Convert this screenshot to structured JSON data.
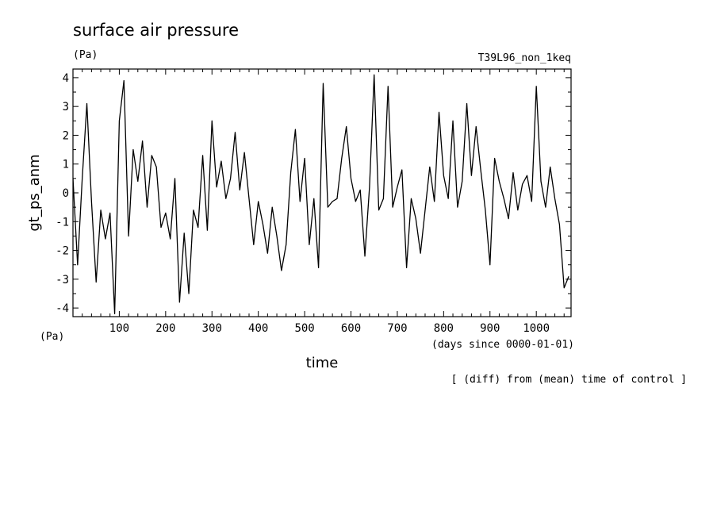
{
  "chart_data": {
    "type": "line",
    "title": "surface air pressure",
    "units_top": "(Pa)",
    "units_bottom": "(Pa)",
    "run_label": "T39L96_non_1keq",
    "ylabel": "gt_ps_anm",
    "xlabel": "time",
    "xunits": "(days since 0000-01-01)",
    "note": "[ (diff) from (mean) time of control ]",
    "xlim": [
      0,
      1075
    ],
    "ylim": [
      4.3,
      -4.3
    ],
    "y_inverted": true,
    "x_ticks": [
      100,
      200,
      300,
      400,
      500,
      600,
      700,
      800,
      900,
      1000
    ],
    "y_ticks": [
      -4,
      -3,
      -2,
      -1,
      0,
      1,
      2,
      3,
      4
    ],
    "series": [
      {
        "name": "gt_ps_anm",
        "x": [
          0,
          10,
          20,
          30,
          40,
          50,
          60,
          70,
          80,
          90,
          100,
          110,
          120,
          130,
          140,
          150,
          160,
          170,
          180,
          190,
          200,
          210,
          220,
          230,
          240,
          250,
          260,
          270,
          280,
          290,
          300,
          310,
          320,
          330,
          340,
          350,
          360,
          370,
          380,
          390,
          400,
          410,
          420,
          430,
          440,
          450,
          460,
          470,
          480,
          490,
          500,
          510,
          520,
          530,
          540,
          550,
          560,
          570,
          580,
          590,
          600,
          610,
          620,
          630,
          640,
          650,
          660,
          670,
          680,
          690,
          700,
          710,
          720,
          730,
          740,
          750,
          760,
          770,
          780,
          790,
          800,
          810,
          820,
          830,
          840,
          850,
          860,
          870,
          880,
          890,
          900,
          910,
          920,
          930,
          940,
          950,
          960,
          970,
          980,
          990,
          1000,
          1010,
          1020,
          1030,
          1040,
          1050,
          1060,
          1070
        ],
        "y": [
          0.5,
          -2.5,
          0.5,
          3.1,
          -0.3,
          -3.1,
          -0.6,
          -1.6,
          -0.7,
          -4.2,
          2.5,
          3.9,
          -1.5,
          1.5,
          0.4,
          1.8,
          -0.5,
          1.3,
          0.9,
          -1.2,
          -0.7,
          -1.6,
          0.5,
          -3.8,
          -1.4,
          -3.5,
          -0.6,
          -1.2,
          1.3,
          -1.3,
          2.5,
          0.2,
          1.1,
          -0.2,
          0.5,
          2.1,
          0.1,
          1.4,
          -0.2,
          -1.8,
          -0.3,
          -1.1,
          -2.1,
          -0.5,
          -1.5,
          -2.7,
          -1.8,
          0.7,
          2.2,
          -0.3,
          1.2,
          -1.8,
          -0.2,
          -2.6,
          3.8,
          -0.5,
          -0.3,
          -0.2,
          1.2,
          2.3,
          0.5,
          -0.3,
          0.1,
          -2.2,
          0.2,
          4.1,
          -0.6,
          -0.2,
          3.7,
          -0.5,
          0.2,
          0.8,
          -2.6,
          -0.2,
          -0.9,
          -2.1,
          -0.6,
          0.9,
          -0.3,
          2.8,
          0.6,
          -0.2,
          2.5,
          -0.5,
          0.4,
          3.1,
          0.6,
          2.3,
          0.8,
          -0.6,
          -2.5,
          1.2,
          0.4,
          -0.2,
          -0.9,
          0.7,
          -0.6,
          0.3,
          0.6,
          -0.3,
          3.7,
          0.4,
          -0.5,
          0.9,
          -0.2,
          -1.1,
          -3.3,
          -2.9
        ]
      }
    ]
  }
}
